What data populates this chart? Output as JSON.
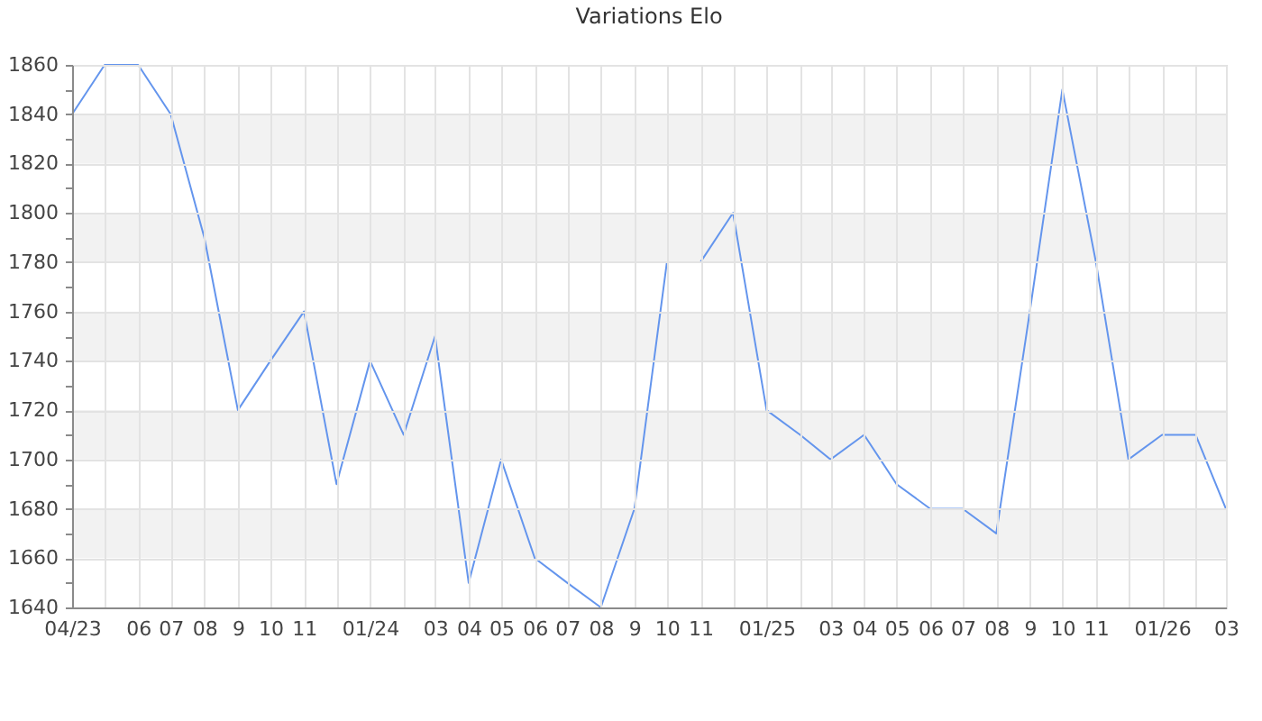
{
  "chart_data": {
    "type": "line",
    "title": "Variations Elo",
    "x": [
      "2023-04",
      "2023-05",
      "2023-06",
      "2023-07",
      "2023-08",
      "2023-09",
      "2023-10",
      "2023-11",
      "2023-12",
      "2024-01",
      "2024-02",
      "2024-03",
      "2024-04",
      "2024-05",
      "2024-06",
      "2024-07",
      "2024-08",
      "2024-09",
      "2024-10",
      "2024-11",
      "2024-12",
      "2025-01",
      "2025-02",
      "2025-03",
      "2025-04",
      "2025-05",
      "2025-06",
      "2025-07",
      "2025-08",
      "2025-09",
      "2025-10",
      "2025-11",
      "2025-12",
      "2026-01",
      "2026-02",
      "2026-03"
    ],
    "series": [
      {
        "color": "#6495ed",
        "values": [
          1840,
          1860,
          1860,
          1840,
          1790,
          1720,
          1740,
          1760,
          1690,
          1740,
          1710,
          1750,
          1650,
          1700,
          1660,
          1650,
          1640,
          1680,
          1780,
          1780,
          1800,
          1720,
          1710,
          1700,
          1710,
          1690,
          1680,
          1680,
          1670,
          1760,
          1850,
          1780,
          1700,
          1710,
          1710,
          1680
        ]
      }
    ],
    "xlim": [
      "2023-04",
      "2026-03"
    ],
    "xticks": [
      {
        "value": "2023-04",
        "label": "04/23"
      },
      {
        "value": "2023-05",
        "label": null
      },
      {
        "value": "2023-06",
        "label": "06"
      },
      {
        "value": "2023-07",
        "label": "07"
      },
      {
        "value": "2023-08",
        "label": "08"
      },
      {
        "value": "2023-09",
        "label": "9"
      },
      {
        "value": "2023-10",
        "label": "10"
      },
      {
        "value": "2023-11",
        "label": "11"
      },
      {
        "value": "2023-12",
        "label": null
      },
      {
        "value": "2024-01",
        "label": "01/24"
      },
      {
        "value": "2024-02",
        "label": null
      },
      {
        "value": "2024-03",
        "label": "03"
      },
      {
        "value": "2024-04",
        "label": "04"
      },
      {
        "value": "2024-05",
        "label": "05"
      },
      {
        "value": "2024-06",
        "label": "06"
      },
      {
        "value": "2024-07",
        "label": "07"
      },
      {
        "value": "2024-08",
        "label": "08"
      },
      {
        "value": "2024-09",
        "label": "9"
      },
      {
        "value": "2024-10",
        "label": "10"
      },
      {
        "value": "2024-11",
        "label": "11"
      },
      {
        "value": "2024-12",
        "label": null
      },
      {
        "value": "2025-01",
        "label": "01/25"
      },
      {
        "value": "2025-02",
        "label": null
      },
      {
        "value": "2025-03",
        "label": "03"
      },
      {
        "value": "2025-04",
        "label": "04"
      },
      {
        "value": "2025-05",
        "label": "05"
      },
      {
        "value": "2025-06",
        "label": "06"
      },
      {
        "value": "2025-07",
        "label": "07"
      },
      {
        "value": "2025-08",
        "label": "08"
      },
      {
        "value": "2025-09",
        "label": "9"
      },
      {
        "value": "2025-10",
        "label": "10"
      },
      {
        "value": "2025-11",
        "label": "11"
      },
      {
        "value": "2025-12",
        "label": null
      },
      {
        "value": "2026-01",
        "label": "01/26"
      },
      {
        "value": "2026-02",
        "label": null
      },
      {
        "value": "2026-03",
        "label": "03"
      }
    ],
    "ylim": [
      1640,
      1860
    ],
    "yticks": [
      1640,
      {
        "value": 1650,
        "label": null
      },
      1660,
      {
        "value": 1670,
        "label": null
      },
      1680,
      {
        "value": 1690,
        "label": null
      },
      1700,
      {
        "value": 1710,
        "label": null
      },
      1720,
      {
        "value": 1730,
        "label": null
      },
      1740,
      {
        "value": 1750,
        "label": null
      },
      1760,
      {
        "value": 1770,
        "label": null
      },
      1780,
      {
        "value": 1790,
        "label": null
      },
      1800,
      {
        "value": 1810,
        "label": null
      },
      1820,
      {
        "value": 1830,
        "label": null
      },
      1840,
      {
        "value": 1850,
        "label": null
      },
      1860
    ],
    "grid": true,
    "bands": [
      {
        "axis": "y",
        "from": 1660,
        "to": 1680,
        "color": "#f2f2f2"
      },
      {
        "axis": "y",
        "from": 1700,
        "to": 1720,
        "color": "#f2f2f2"
      },
      {
        "axis": "y",
        "from": 1740,
        "to": 1760,
        "color": "#f2f2f2"
      },
      {
        "axis": "y",
        "from": 1780,
        "to": 1800,
        "color": "#f2f2f2"
      },
      {
        "axis": "y",
        "from": 1820,
        "to": 1840,
        "color": "#f2f2f2"
      }
    ],
    "line_style": "solid"
  }
}
